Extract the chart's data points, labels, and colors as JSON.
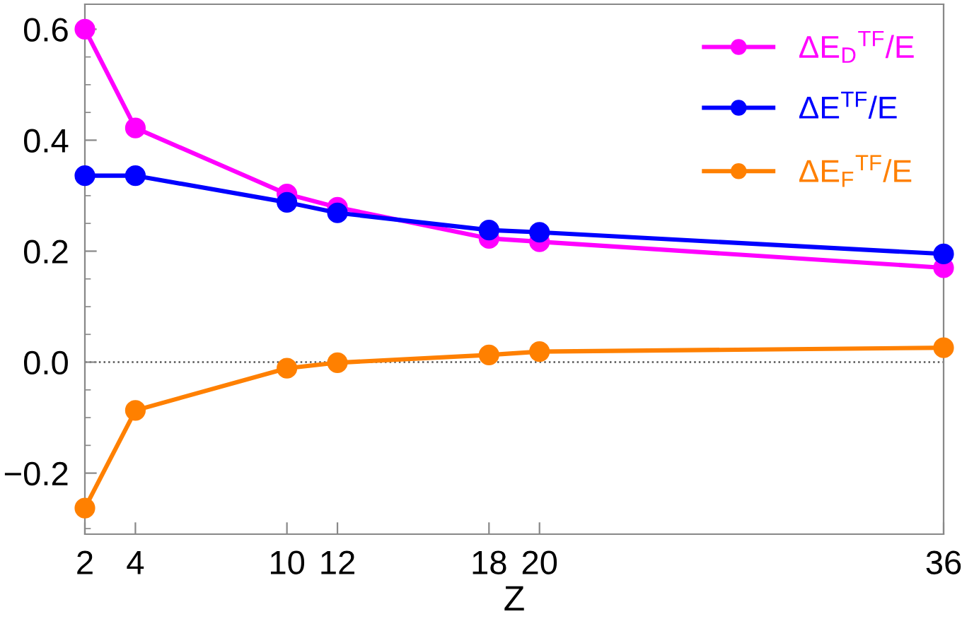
{
  "chart_data": {
    "type": "line",
    "xlabel": "Z",
    "x": [
      2,
      4,
      10,
      12,
      18,
      20,
      36
    ],
    "series": [
      {
        "name": "ΔE$_{D}$$^{TF}$/E",
        "color": "#ff00ff",
        "values": [
          0.6,
          0.422,
          0.303,
          0.279,
          0.223,
          0.217,
          0.17
        ]
      },
      {
        "name": "ΔE$^{TF}$/E",
        "color": "#0000ff",
        "values": [
          0.336,
          0.336,
          0.288,
          0.269,
          0.238,
          0.234,
          0.195
        ]
      },
      {
        "name": "ΔE$_{F}$$^{TF}$/E",
        "color": "#ff8000",
        "values": [
          -0.263,
          -0.087,
          -0.011,
          -0.001,
          0.013,
          0.019,
          0.026
        ]
      }
    ],
    "xlim": [
      2,
      36
    ],
    "xticks": [
      2,
      4,
      10,
      12,
      18,
      20,
      36
    ],
    "ylim": [
      -0.31,
      0.645
    ],
    "yticks": [
      {
        "value": -0.2,
        "label": "−0.2"
      },
      {
        "value": 0.0,
        "label": "0.0"
      },
      {
        "value": 0.2,
        "label": "0.2"
      },
      {
        "value": 0.4,
        "label": "0.4"
      },
      {
        "value": 0.6,
        "label": "0.6"
      }
    ],
    "ref_lines": [
      {
        "axis": "y",
        "value": 0,
        "color": "#555555",
        "line_style": "dotted"
      }
    ],
    "grid": false,
    "legend": "top right",
    "marker": "circle",
    "line_style": "solid"
  }
}
